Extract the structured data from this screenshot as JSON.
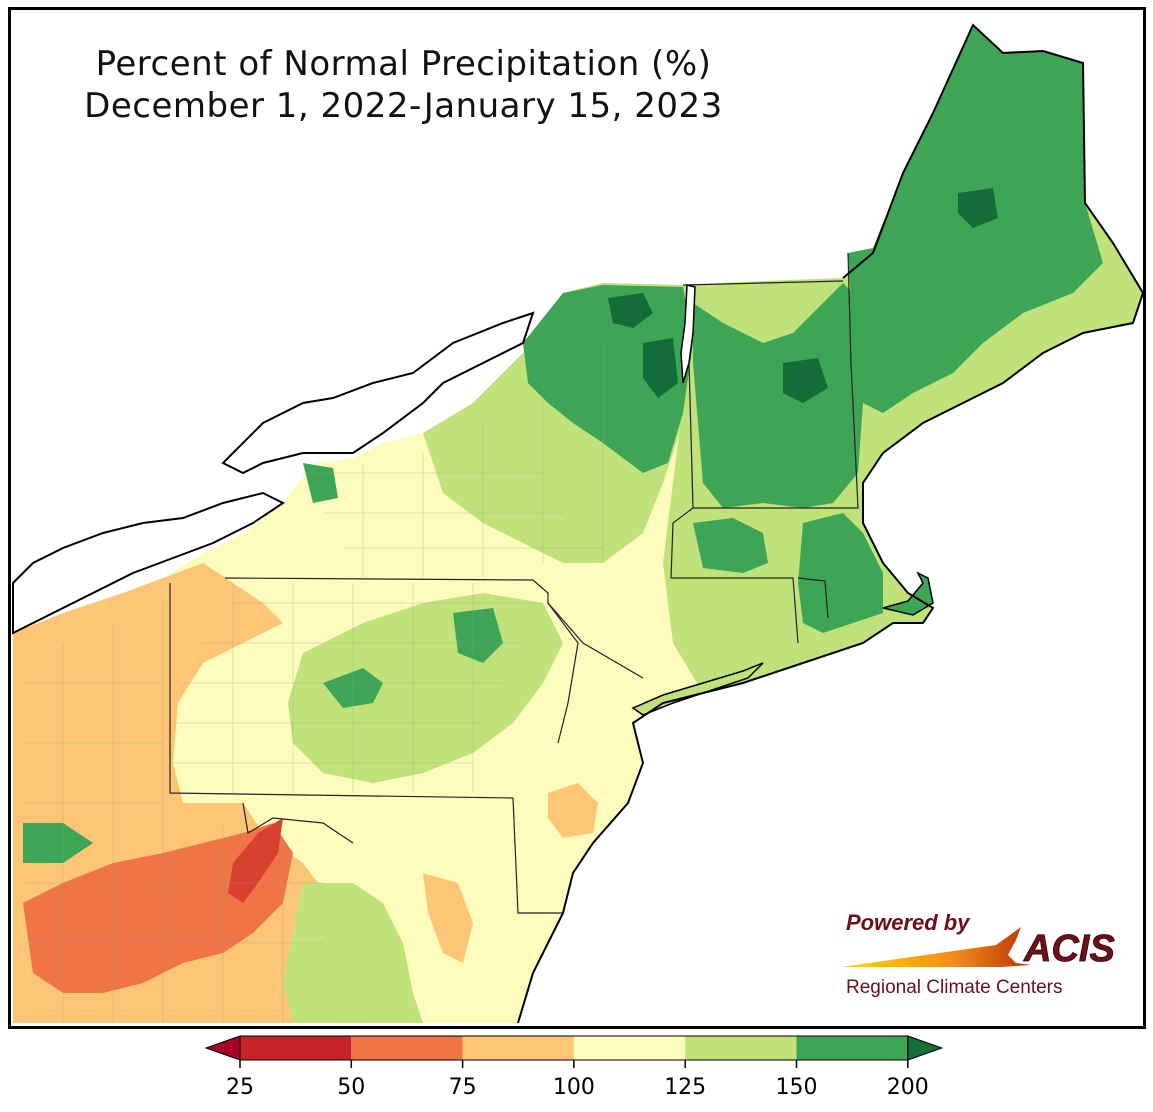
{
  "map": {
    "title_line1": "Percent of Normal Precipitation (%)",
    "title_line2": "December 1, 2022-January 15, 2023"
  },
  "legend": {
    "ticks": [
      "25",
      "50",
      "75",
      "100",
      "125",
      "150",
      "200"
    ],
    "bins": [
      {
        "range": "25-50",
        "color": "#c8222b"
      },
      {
        "range": "50-75",
        "color": "#f07546"
      },
      {
        "range": "75-100",
        "color": "#fdc676"
      },
      {
        "range": "100-125",
        "color": "#fefcbc"
      },
      {
        "range": "125-150",
        "color": "#bfe27a"
      },
      {
        "range": "150-200",
        "color": "#3ea456"
      }
    ],
    "under_color": "#a50026",
    "over_color": "#176d3a"
  },
  "logo": {
    "powered_by": "Powered by",
    "name": "ACIS",
    "subtitle": "Regional Climate Centers",
    "text_color": "#6b0f1a"
  },
  "colors": {
    "lake": "#ffffff",
    "ocean": "#ffffff",
    "very_wet": "#146c38",
    "wet": "#3ea456",
    "moist": "#bfe27a",
    "near_normal": "#fefcbc",
    "dry": "#fdc676",
    "very_dry": "#f07546",
    "driest": "#d84030"
  }
}
